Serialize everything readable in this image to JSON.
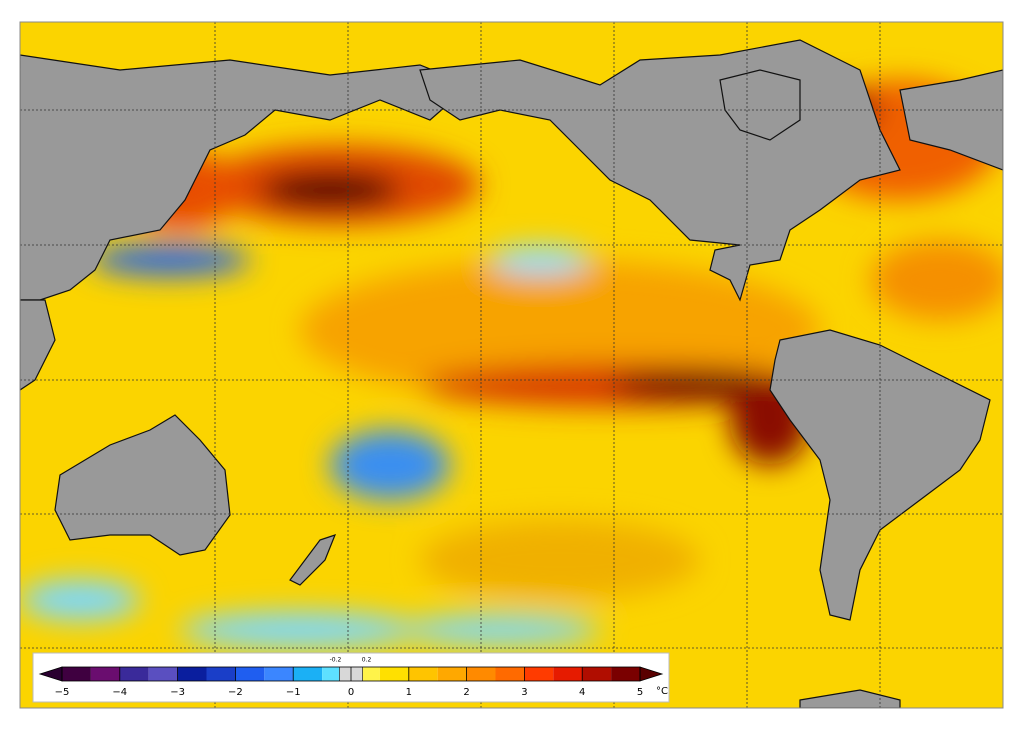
{
  "colorbar": {
    "lim": [
      -5,
      5
    ],
    "ticks": [
      {
        "value": -5,
        "label": "−5"
      },
      {
        "value": -4,
        "label": "−4"
      },
      {
        "value": -3,
        "label": "−3"
      },
      {
        "value": -2,
        "label": "−2"
      },
      {
        "value": -1,
        "label": "−1"
      },
      0,
      1,
      2,
      3,
      4,
      5
    ],
    "neutral_ticks": [
      -0.2,
      0.2
    ],
    "unit": "°C",
    "bounds": [
      -5,
      -4.5,
      -4,
      -3.5,
      -3,
      -2.5,
      -2,
      -1.5,
      -1,
      -0.5,
      -0.2,
      0.2,
      0.5,
      1,
      1.5,
      2,
      2.5,
      3,
      3.5,
      4,
      4.5,
      5
    ],
    "colors": [
      "#3f0040",
      "#6a0d6f",
      "#3a2a9a",
      "#5a4fc0",
      "#0a1e9e",
      "#1a3ec8",
      "#1f5ef0",
      "#3b86ff",
      "#1bb0f5",
      "#5ee0ff",
      "#d8d8d8",
      "#fff34a",
      "#ffe000",
      "#ffc400",
      "#ffa800",
      "#ff8a00",
      "#ff6a00",
      "#ff3b00",
      "#e61b00",
      "#b00d00",
      "#7a0000"
    ],
    "under_color": "#2a0030",
    "over_color": "#5a0000"
  }
}
